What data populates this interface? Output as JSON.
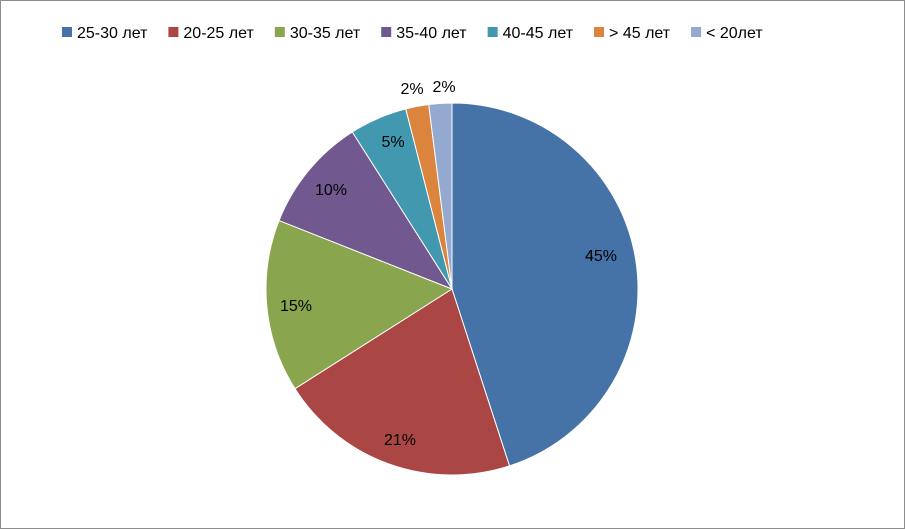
{
  "chart_data": {
    "type": "pie",
    "title": "",
    "legend_position": "top",
    "start_angle_deg": 0,
    "direction": "clockwise",
    "slices": [
      {
        "label": "25-30 лет",
        "value": 45,
        "display": "45%",
        "color": "#4572A7"
      },
      {
        "label": "20-25 лет",
        "value": 21,
        "display": "21%",
        "color": "#AA4643"
      },
      {
        "label": "30-35 лет",
        "value": 15,
        "display": "15%",
        "color": "#89A54E"
      },
      {
        "label": "35-40 лет",
        "value": 10,
        "display": "10%",
        "color": "#71588F"
      },
      {
        "label": "40-45 лет",
        "value": 5,
        "display": "5%",
        "color": "#4198AF"
      },
      {
        "label": "> 45 лет",
        "value": 2,
        "display": "2%",
        "color": "#DB843D"
      },
      {
        "label": "< 20лет",
        "value": 2,
        "display": "2%",
        "color": "#93A9CF"
      }
    ]
  }
}
